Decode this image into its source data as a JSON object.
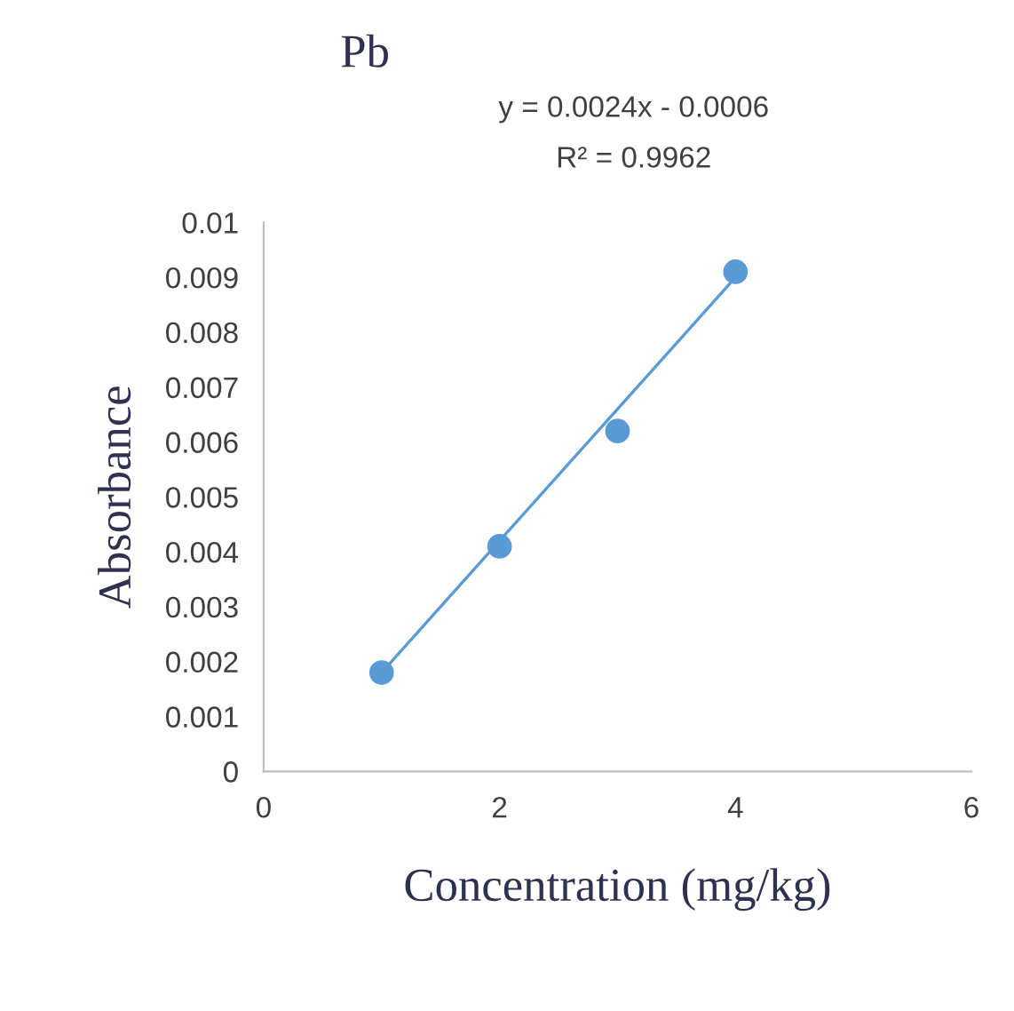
{
  "chart_data": {
    "type": "scatter",
    "title": "Pb",
    "xlabel": "Concentration (mg/kg)",
    "ylabel": "Absorbance",
    "annotations": [
      "y = 0.0024x - 0.0006",
      "R² = 0.9962"
    ],
    "series": [
      {
        "color": "#5b9bd5",
        "x": [
          1,
          2,
          3,
          4
        ],
        "values": [
          0.0018,
          0.0041,
          0.0062,
          0.0091
        ],
        "marker": "circle"
      },
      {
        "type": "line",
        "color": "#5b9bd5",
        "x": [
          1,
          4
        ],
        "values": [
          0.0018,
          0.009
        ],
        "marker": "none",
        "line_style": "solid"
      }
    ],
    "xlim": [
      0,
      6
    ],
    "xticks": [
      0,
      2,
      4,
      6
    ],
    "ylim": [
      0,
      0.01
    ],
    "yticks": [
      0,
      0.001,
      0.002,
      0.003,
      0.004,
      0.005,
      0.006,
      0.007,
      0.008,
      0.009,
      0.01
    ],
    "grid": false,
    "legend": false
  }
}
